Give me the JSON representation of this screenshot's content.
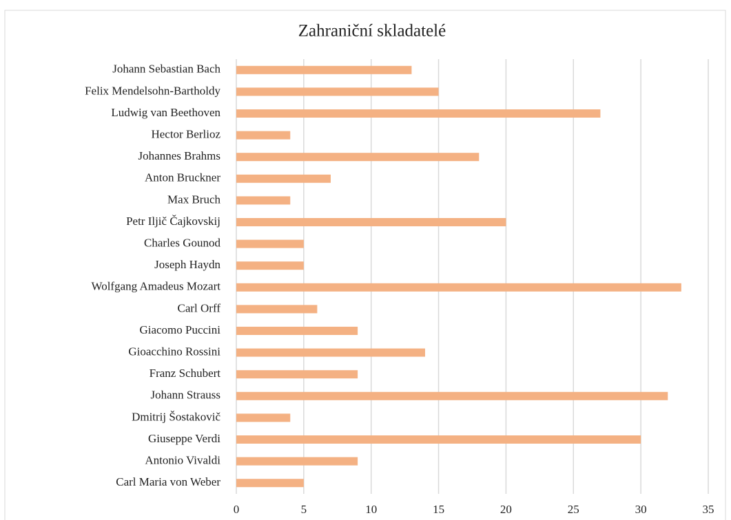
{
  "chart_data": {
    "type": "barh",
    "title": "Zahraniční skladatelé",
    "categories": [
      "Johann Sebastian Bach",
      "Felix Mendelsohn-Bartholdy",
      "Ludwig van Beethoven",
      "Hector Berlioz",
      "Johannes Brahms",
      "Anton Bruckner",
      "Max Bruch",
      "Petr Iljič Čajkovskij",
      "Charles Gounod",
      "Joseph Haydn",
      "Wolfgang Amadeus Mozart",
      "Carl Orff",
      "Giacomo Puccini",
      "Gioacchino Rossini",
      "Franz Schubert",
      "Johann Strauss",
      "Dmitrij Šostakovič",
      "Giuseppe Verdi",
      "Antonio Vivaldi",
      "Carl Maria von Weber"
    ],
    "values": [
      13,
      15,
      27,
      4,
      18,
      7,
      4,
      20,
      5,
      5,
      33,
      6,
      9,
      14,
      9,
      32,
      4,
      30,
      9,
      5
    ],
    "color": "#f4b183",
    "xlim": [
      0,
      35
    ],
    "xticks": [
      0,
      5,
      10,
      15,
      20,
      25,
      30,
      35
    ],
    "grid": true
  }
}
